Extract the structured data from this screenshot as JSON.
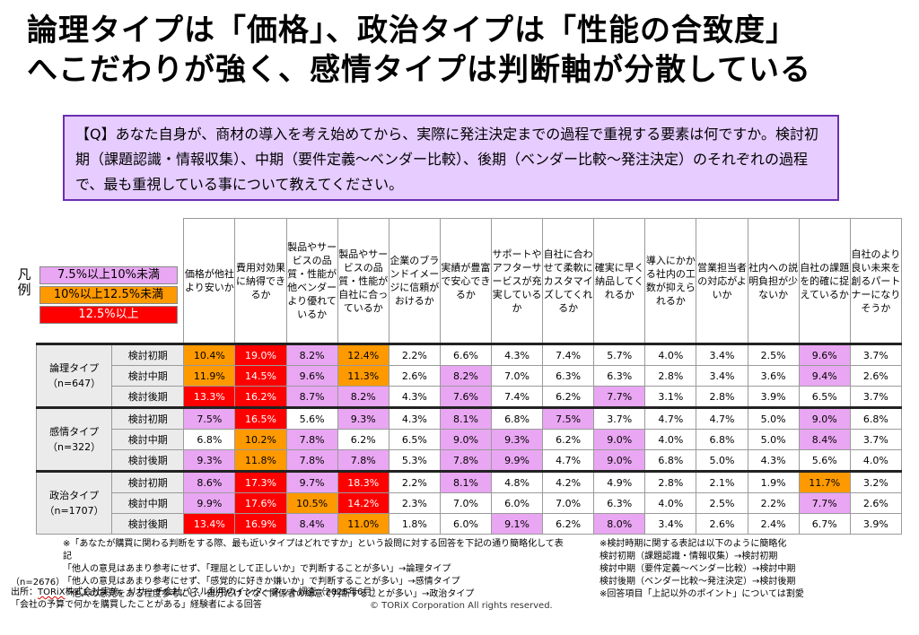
{
  "title": {
    "line1": "論理タイプは「価格」、政治タイプは「性能の合致度」",
    "line2": "へこだわりが強く、感情タイプは判断軸が分散している"
  },
  "question": "【Q】あなた自身が、商材の導入を考え始めてから、実際に発注決定までの過程で重視する要素は何ですか。検討初期（課題認識・情報収集）、中期（要件定義〜ベンダー比較）、後期（ベンダー比較〜発注決定）のそれぞれの過程で、最も重視している事について教えてください。",
  "legend": {
    "label": "凡例",
    "items": [
      "7.5%以上10%未満",
      "10%以上12.5%未満",
      "12.5%以上"
    ]
  },
  "columns": [
    "価格が他社より安いか",
    "費用対効果に納得できるか",
    "製品やサービスの品質・性能が他ベンダーより優れているか",
    "製品やサービスの品質・性能が自社に合っているか",
    "企業のブランドイメージに信頼がおけるか",
    "実績が豊富で安心できるか",
    "サポートやアフターサービスが充実しているか",
    "自社に合わせて柔軟にカスタマイズしてくれるか",
    "確実に早く納品してくれるか",
    "導入にかかる社内の工数が抑えられるか",
    "営業担当者の対応がよいか",
    "社内への説明負担が少ないか",
    "自社の課題を的確に捉えているか",
    "自社のより良い未来を創るパートナーになりそうか"
  ],
  "groups": [
    {
      "name": "論理タイプ",
      "n": "（n=647）",
      "rows": [
        {
          "phase": "検討初期",
          "values": [
            "10.4%",
            "19.0%",
            "8.2%",
            "12.4%",
            "2.2%",
            "6.6%",
            "4.3%",
            "7.4%",
            "5.7%",
            "4.0%",
            "3.4%",
            "2.5%",
            "9.6%",
            "3.7%"
          ],
          "levels": [
            "o",
            "r",
            "p",
            "o",
            "",
            "",
            "",
            "",
            "",
            "",
            "",
            "",
            "p",
            ""
          ]
        },
        {
          "phase": "検討中期",
          "values": [
            "11.9%",
            "14.5%",
            "9.6%",
            "11.3%",
            "2.6%",
            "8.2%",
            "7.0%",
            "6.3%",
            "6.3%",
            "2.8%",
            "3.4%",
            "3.6%",
            "9.4%",
            "2.6%"
          ],
          "levels": [
            "o",
            "r",
            "p",
            "o",
            "",
            "p",
            "",
            "",
            "",
            "",
            "",
            "",
            "p",
            ""
          ]
        },
        {
          "phase": "検討後期",
          "values": [
            "13.3%",
            "16.2%",
            "8.7%",
            "8.2%",
            "4.3%",
            "7.6%",
            "7.4%",
            "6.2%",
            "7.7%",
            "3.1%",
            "2.8%",
            "3.9%",
            "6.5%",
            "3.7%"
          ],
          "levels": [
            "r",
            "r",
            "p",
            "p",
            "",
            "p",
            "",
            "",
            "p",
            "",
            "",
            "",
            "",
            ""
          ]
        }
      ]
    },
    {
      "name": "感情タイプ",
      "n": "（n=322）",
      "rows": [
        {
          "phase": "検討初期",
          "values": [
            "7.5%",
            "16.5%",
            "5.6%",
            "9.3%",
            "4.3%",
            "8.1%",
            "6.8%",
            "7.5%",
            "3.7%",
            "4.7%",
            "4.7%",
            "5.0%",
            "9.0%",
            "6.8%"
          ],
          "levels": [
            "p",
            "r",
            "",
            "p",
            "",
            "p",
            "",
            "p",
            "",
            "",
            "",
            "",
            "p",
            ""
          ]
        },
        {
          "phase": "検討中期",
          "values": [
            "6.8%",
            "10.2%",
            "7.8%",
            "6.2%",
            "6.5%",
            "9.0%",
            "9.3%",
            "6.2%",
            "9.0%",
            "4.0%",
            "6.8%",
            "5.0%",
            "8.4%",
            "3.7%"
          ],
          "levels": [
            "",
            "o",
            "p",
            "",
            "",
            "p",
            "p",
            "",
            "p",
            "",
            "",
            "",
            "p",
            ""
          ]
        },
        {
          "phase": "検討後期",
          "values": [
            "9.3%",
            "11.8%",
            "7.8%",
            "7.8%",
            "5.3%",
            "7.8%",
            "9.9%",
            "4.7%",
            "9.0%",
            "6.8%",
            "5.0%",
            "4.3%",
            "5.6%",
            "4.0%"
          ],
          "levels": [
            "p",
            "o",
            "p",
            "p",
            "",
            "p",
            "p",
            "",
            "p",
            "",
            "",
            "",
            "",
            ""
          ]
        }
      ]
    },
    {
      "name": "政治タイプ",
      "n": "（n=1707）",
      "rows": [
        {
          "phase": "検討初期",
          "values": [
            "8.6%",
            "17.3%",
            "9.7%",
            "18.3%",
            "2.2%",
            "8.1%",
            "4.8%",
            "4.2%",
            "4.9%",
            "2.8%",
            "2.1%",
            "1.9%",
            "11.7%",
            "3.2%"
          ],
          "levels": [
            "p",
            "r",
            "p",
            "r",
            "",
            "p",
            "",
            "",
            "",
            "",
            "",
            "",
            "o",
            ""
          ]
        },
        {
          "phase": "検討中期",
          "values": [
            "9.9%",
            "17.6%",
            "10.5%",
            "14.2%",
            "2.3%",
            "7.0%",
            "6.0%",
            "7.0%",
            "6.3%",
            "4.0%",
            "2.5%",
            "2.2%",
            "7.7%",
            "2.6%"
          ],
          "levels": [
            "p",
            "r",
            "o",
            "r",
            "",
            "",
            "",
            "",
            "",
            "",
            "",
            "",
            "p",
            ""
          ]
        },
        {
          "phase": "検討後期",
          "values": [
            "13.4%",
            "16.9%",
            "8.4%",
            "11.0%",
            "1.8%",
            "6.0%",
            "9.1%",
            "6.2%",
            "8.0%",
            "3.4%",
            "2.6%",
            "2.4%",
            "6.7%",
            "3.9%"
          ],
          "levels": [
            "r",
            "r",
            "p",
            "o",
            "",
            "",
            "p",
            "",
            "p",
            "",
            "",
            "",
            "",
            ""
          ]
        }
      ]
    }
  ],
  "notes_left": [
    "※「あなたが購買に関わる判断をする際、最も近いタイプはどれですか」という設問に対する回答を下記の通り簡略化して表記",
    "「他人の意見はあまり参考にせず、「理屈として正しいか」で判断することが多い」→論理タイプ",
    "「他人の意見はあまり参考にせず、「感覚的に好きか嫌いか」で判断することが多い」→感情タイプ",
    "「他人の意見をある程度参考にし、自分だけでなく関係者の総意で判断することが多い」→政治タイプ"
  ],
  "notes_right": [
    "※検討時期に関する表記は以下のように簡略化",
    "検討初期（課題認識・情報収集）→検討初期",
    "検討中期（要件定義〜ベンダー比較）→検討中期",
    "検討後期（ベンダー比較〜発注決定）→検討後期",
    "※回答項目「上記以外のポイント」については割愛"
  ],
  "sample_size": "（n=2676）",
  "source": {
    "prefix": "出所：",
    "brand": "TORiX",
    "rest": "株式会社実施、リサーチ会社パネル利用のインターネット調査（2025年6月）",
    "line2": "「会社の予算で何かを購買したことがある」経験者による回答"
  },
  "copyright": "© TORiX Corporation All rights reserved.",
  "colors": {
    "purple": "#e9a6f2",
    "orange": "#ff9900",
    "red": "#ff0000",
    "question_bg": "#e6ccff",
    "question_border": "#6a2fb3"
  }
}
